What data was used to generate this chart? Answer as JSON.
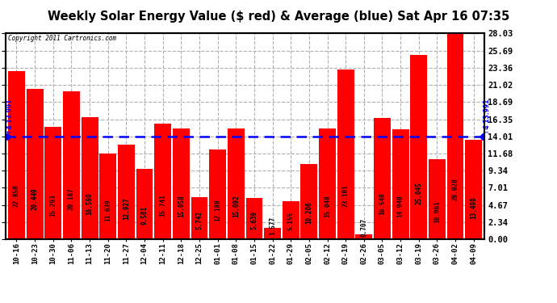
{
  "title": "Weekly Solar Energy Value ($ red) & Average (blue) Sat Apr 16 07:35",
  "copyright": "Copyright 2011 Cartronics.com",
  "categories": [
    "10-16",
    "10-23",
    "10-30",
    "11-06",
    "11-13",
    "11-20",
    "11-27",
    "12-04",
    "12-11",
    "12-18",
    "12-25",
    "01-01",
    "01-08",
    "01-15",
    "01-22",
    "01-29",
    "02-05",
    "02-12",
    "02-19",
    "02-26",
    "03-05",
    "03-12",
    "03-19",
    "03-26",
    "04-02",
    "04-09"
  ],
  "values": [
    22.85,
    20.449,
    15.293,
    20.187,
    16.59,
    11.639,
    12.927,
    9.581,
    15.741,
    15.058,
    5.742,
    12.18,
    15.092,
    5.639,
    1.577,
    5.155,
    10.206,
    15.048,
    23.101,
    0.707,
    16.54,
    14.94,
    25.045,
    10.961,
    28.028,
    13.498
  ],
  "average": 13.991,
  "bar_color": "#ff0000",
  "average_color": "#0000ff",
  "background_color": "#ffffff",
  "plot_bg_color": "#ffffff",
  "y_ticks_right": [
    0.0,
    2.34,
    4.67,
    7.01,
    9.34,
    11.68,
    14.01,
    16.35,
    18.69,
    21.02,
    23.36,
    25.69,
    28.03
  ],
  "ylim": [
    0,
    28.03
  ],
  "grid_color": "#b0b0b0",
  "title_fontsize": 10.5,
  "value_fontsize": 5.5,
  "xtick_fontsize": 6.5,
  "ytick_fontsize": 7.5
}
